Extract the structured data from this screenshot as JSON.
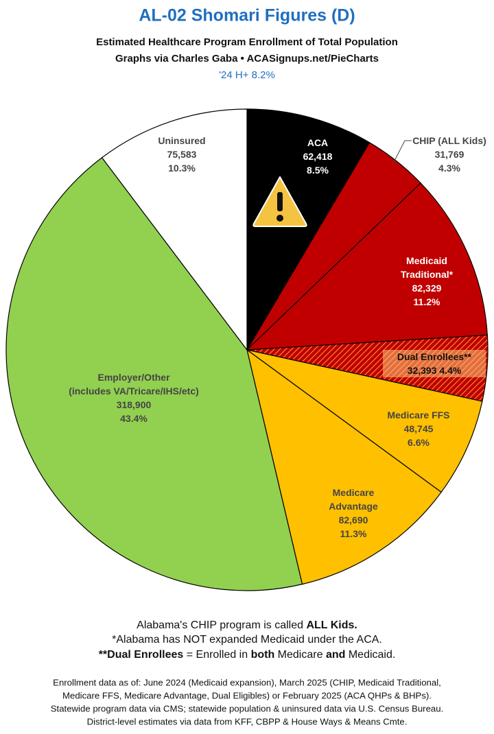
{
  "chart_data": {
    "type": "pie",
    "title": "AL-02 Shomari Figures (D)",
    "subtitle": "Estimated Healthcare Program Enrollment of Total Population",
    "credit": "Graphs via Charles Gaba  •  ACASignups.net/PieCharts",
    "highlight": "'24 H+ 8.2%",
    "categories": [
      "ACA",
      "CHIP (ALL Kids)",
      "Medicaid Traditional*",
      "Dual Enrollees**",
      "Medicare FFS",
      "Medicare Advantage",
      "Employer/Other",
      "Uninsured"
    ],
    "employer_note": "(includes VA/Tricare/IHS/etc)",
    "values": [
      62418,
      31769,
      82329,
      32393,
      48745,
      82690,
      318900,
      75583
    ],
    "value_labels": [
      "62,418",
      "31,769",
      "82,329",
      "32,393",
      "48,745",
      "82,690",
      "318,900",
      "75,583"
    ],
    "percent_labels": [
      "8.5%",
      "4.3%",
      "11.2%",
      "4.4%",
      "6.6%",
      "11.3%",
      "43.4%",
      "10.3%"
    ],
    "colors": [
      "#000000",
      "#c00000",
      "#c00000",
      "#c00000",
      "#ffc000",
      "#ffc000",
      "#92d050",
      "#ffffff"
    ],
    "hatched": [
      false,
      false,
      false,
      true,
      false,
      false,
      false,
      false
    ],
    "notes": [
      [
        "Alabama's CHIP program is called ",
        "ALL Kids."
      ],
      [
        "*Alabama has NOT expanded Medicaid under the ACA."
      ],
      [
        "**Dual Enrollees",
        " = Enrolled in ",
        "both",
        " Medicare ",
        "and",
        " Medicaid."
      ]
    ],
    "sources": [
      "Enrollment data as of: June 2024 (Medicaid expansion), March 2025 (CHIP, Medicaid Traditional,",
      "Medicare FFS, Medicare Advantage, Dual Eligibles) or February 2025 (ACA QHPs & BHPs).",
      "Statewide program data via CMS; statewide population & uninsured data via U.S. Census Bureau.",
      "District-level estimates via data from KFF, CBPP & House Ways & Means Cmte."
    ]
  }
}
